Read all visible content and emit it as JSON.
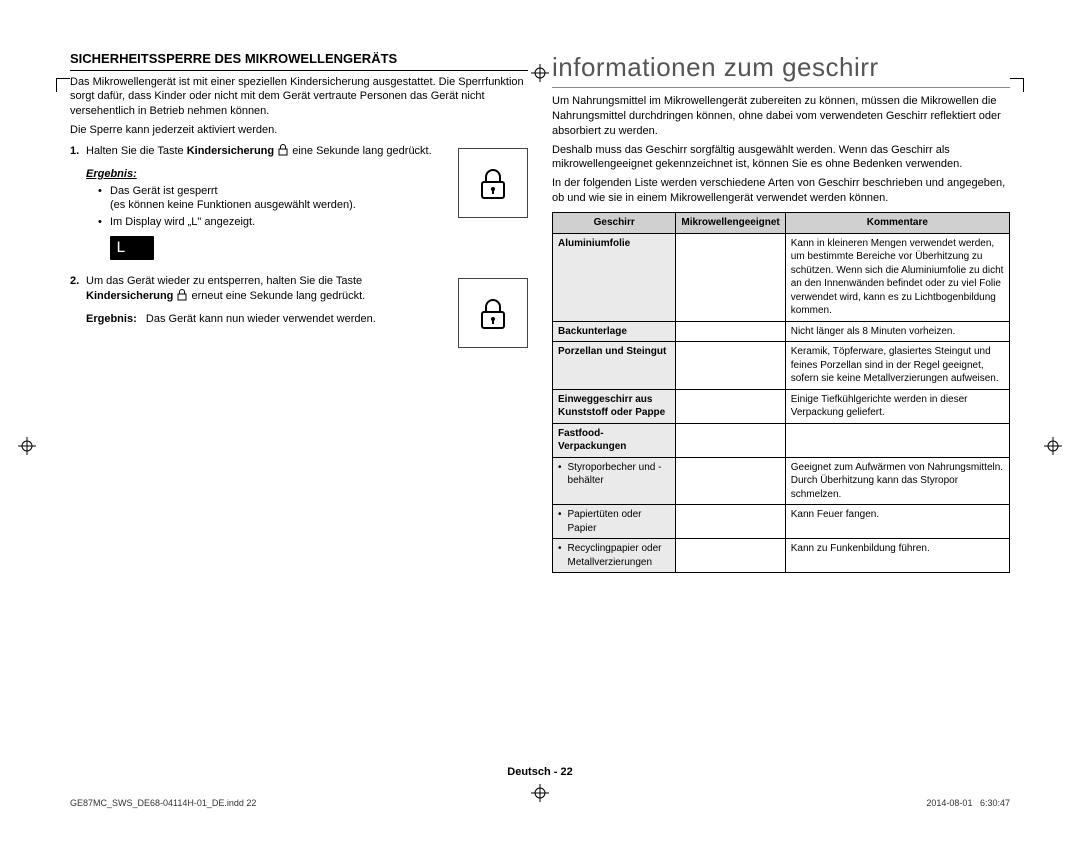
{
  "left": {
    "title": "SICHERHEITSSPERRE DES MIKROWELLENGERÄTS",
    "intro1": "Das Mikrowellengerät ist mit einer speziellen Kindersicherung ausgestattet. Die Sperrfunktion sorgt dafür, dass Kinder oder nicht mit dem Gerät vertraute Personen das Gerät nicht versehentlich in Betrieb nehmen können.",
    "intro2": "Die Sperre kann jederzeit aktiviert werden.",
    "step1_a": "Halten Sie die Taste ",
    "step1_bold": "Kindersicherung",
    "step1_b": " eine Sekunde lang gedrückt.",
    "result_label": "Ergebnis:",
    "result1_b1": "Das Gerät ist gesperrt",
    "result1_b1_sub": "(es können keine Funktionen ausgewählt werden).",
    "result1_b2": "Im Display wird „L\" angezeigt.",
    "display_L": "L",
    "step2_a": "Um das Gerät wieder zu entsperren, halten Sie die Taste ",
    "step2_bold": "Kindersicherung",
    "step2_b": " erneut eine Sekunde lang gedrückt.",
    "result2_label": "Ergebnis:",
    "result2_text": "Das Gerät kann nun wieder verwendet werden."
  },
  "right": {
    "title": "informationen zum geschirr",
    "p1": "Um Nahrungsmittel im Mikrowellengerät zubereiten zu können, müssen die Mikrowellen die Nahrungsmittel durchdringen können, ohne dabei vom verwendeten Geschirr reflektiert oder absorbiert zu werden.",
    "p2": "Deshalb muss das Geschirr sorgfältig ausgewählt werden. Wenn das Geschirr als mikrowellengeeignet gekennzeichnet ist, können Sie es ohne Bedenken verwenden.",
    "p3": "In der folgenden Liste werden verschiedene Arten von Geschirr beschrieben und angegeben, ob und wie sie in einem Mikrowellengerät verwendet werden können.",
    "table": {
      "headers": [
        "Geschirr",
        "Mikrowellengeeignet",
        "Kommentare"
      ],
      "rows": [
        {
          "c1": "Aluminiumfolie",
          "c2": "",
          "c3": "Kann in kleineren Mengen verwendet werden, um bestimmte Bereiche vor Überhitzung zu schützen. Wenn sich die Aluminiumfolie zu dicht an den Innenwänden befindet oder zu viel Folie verwendet wird, kann es zu Lichtbogenbildung kommen."
        },
        {
          "c1": "Backunterlage",
          "c2": "",
          "c3": "Nicht länger als 8 Minuten vorheizen."
        },
        {
          "c1": "Porzellan und Steingut",
          "c2": "",
          "c3": "Keramik, Töpferware, glasiertes Steingut und feines Porzellan sind in der Regel geeignet, sofern sie keine Metallverzierungen aufweisen."
        },
        {
          "c1": "Einweggeschirr aus Kunststoff oder Pappe",
          "c2": "",
          "c3": "Einige Tiefkühlgerichte werden in dieser Verpackung geliefert."
        }
      ],
      "fastfood_header": "Fastfood-Verpackungen",
      "subrows": [
        {
          "c1": "Styroporbecher und -behälter",
          "c3": "Geeignet zum Aufwärmen von Nahrungsmitteln. Durch Überhitzung kann das Styropor schmelzen."
        },
        {
          "c1": "Papiertüten oder Papier",
          "c3": "Kann Feuer fangen."
        },
        {
          "c1": "Recyclingpapier oder Metallverzierungen",
          "c3": "Kann zu Funkenbildung führen."
        }
      ]
    }
  },
  "footer": {
    "lang": "Deutsch",
    "page": "22",
    "file": "GE87MC_SWS_DE68-04114H-01_DE.indd   22",
    "date": "2014-08-01",
    "time": "   6:30:47"
  }
}
